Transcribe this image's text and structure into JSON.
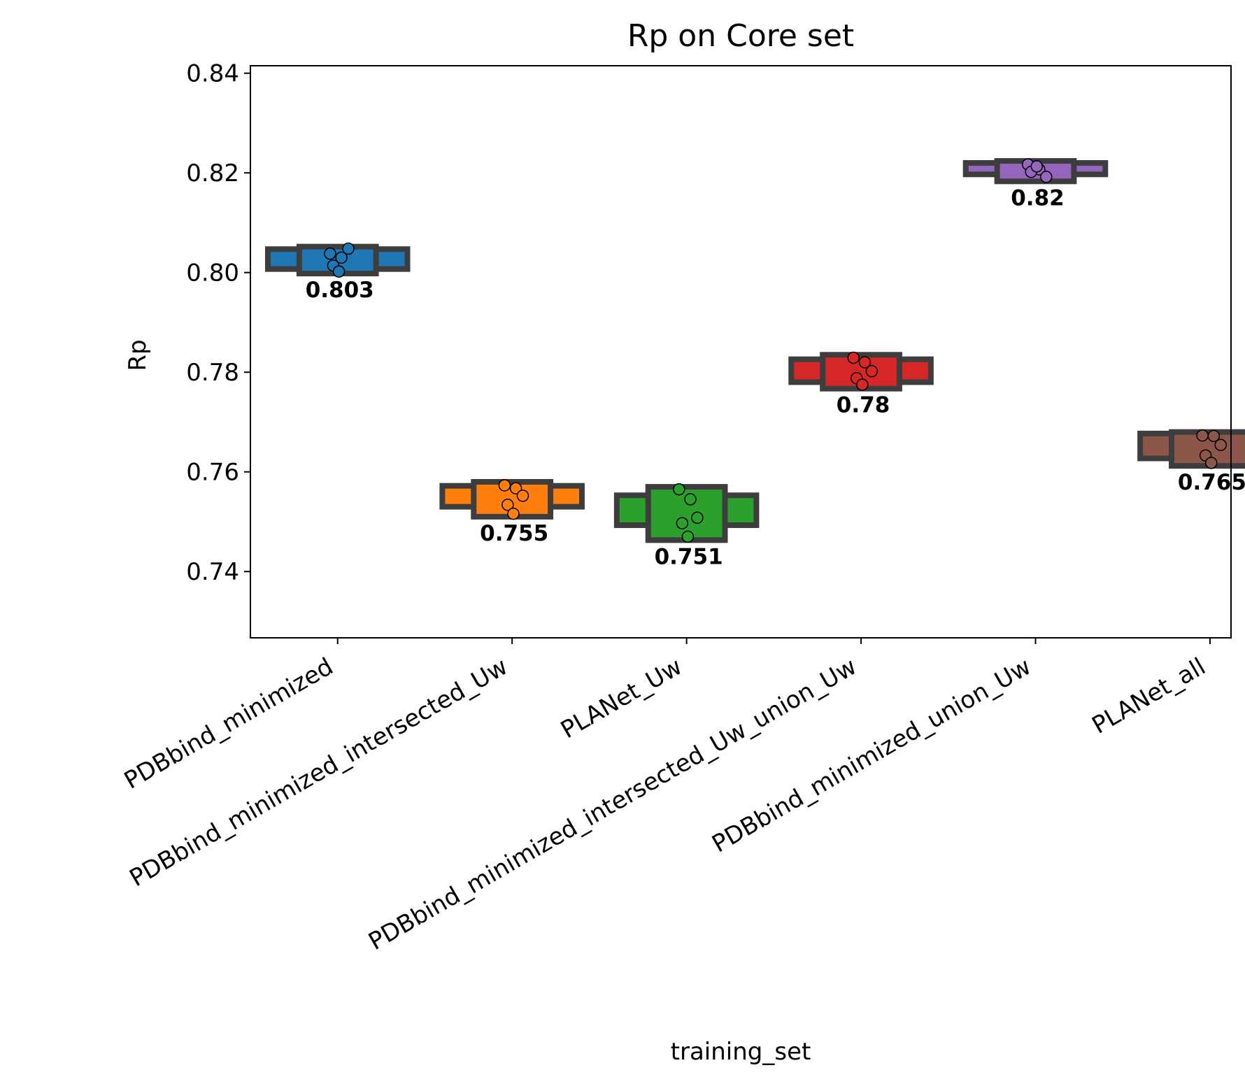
{
  "chart_data": {
    "type": "box",
    "title": "Rp on Core set",
    "xlabel": "training_set",
    "ylabel": "Rp",
    "ylim": [
      0.7267,
      0.8415
    ],
    "yticks": [
      0.74,
      0.76,
      0.78,
      0.8,
      0.82,
      0.84
    ],
    "ytick_labels": [
      "0.74",
      "0.76",
      "0.78",
      "0.80",
      "0.82",
      "0.84"
    ],
    "grid": false,
    "categories": [
      "PDBbind_minimized",
      "PDBbind_minimized_intersected_Uw",
      "PLANet_Uw",
      "PDBbind_minimized_intersected_Uw_union_Uw",
      "PDBbind_minimized_union_Uw",
      "PLANet_all"
    ],
    "series": [
      {
        "category": "PDBbind_minimized",
        "color": "#1f77b4",
        "boxes": [
          {
            "lo": 0.8007,
            "hi": 0.8047,
            "median": 0.8021,
            "w": 1.0
          },
          {
            "lo": 0.7998,
            "hi": 0.8052,
            "w": 0.55
          }
        ],
        "points": [
          0.8038,
          0.803,
          0.8048,
          0.8014,
          0.8002
        ],
        "median_label": "0.803"
      },
      {
        "category": "PDBbind_minimized_intersected_Uw",
        "color": "#ff7f0e",
        "boxes": [
          {
            "lo": 0.753,
            "hi": 0.7572,
            "median": 0.7546,
            "w": 1.0
          },
          {
            "lo": 0.751,
            "hi": 0.758,
            "w": 0.55
          }
        ],
        "points": [
          0.7573,
          0.7567,
          0.7552,
          0.7534,
          0.7516
        ],
        "median_label": "0.755"
      },
      {
        "category": "PLANet_Uw",
        "color": "#2ca02c",
        "boxes": [
          {
            "lo": 0.7493,
            "hi": 0.7553,
            "median": 0.7515,
            "w": 1.0
          },
          {
            "lo": 0.7463,
            "hi": 0.757,
            "w": 0.55
          }
        ],
        "points": [
          0.7565,
          0.7545,
          0.7508,
          0.7497,
          0.747
        ],
        "median_label": "0.751"
      },
      {
        "category": "PDBbind_minimized_intersected_Uw_union_Uw",
        "color": "#d62728",
        "boxes": [
          {
            "lo": 0.778,
            "hi": 0.7826,
            "median": 0.7811,
            "w": 1.0
          },
          {
            "lo": 0.7767,
            "hi": 0.7835,
            "w": 0.55
          }
        ],
        "points": [
          0.7829,
          0.782,
          0.7802,
          0.7788,
          0.7775
        ],
        "median_label": "0.78"
      },
      {
        "category": "PDBbind_minimized_union_Uw",
        "color": "#9467bd",
        "boxes": [
          {
            "lo": 0.8197,
            "hi": 0.822,
            "median": 0.8208,
            "w": 1.0
          },
          {
            "lo": 0.8183,
            "hi": 0.8224,
            "w": 0.55
          }
        ],
        "points": [
          0.8217,
          0.8207,
          0.8192,
          0.8202,
          0.8213
        ],
        "median_label": "0.82"
      },
      {
        "category": "PLANet_all",
        "color": "#8c564b",
        "boxes": [
          {
            "lo": 0.7627,
            "hi": 0.7677,
            "median": 0.7661,
            "w": 1.0
          },
          {
            "lo": 0.7612,
            "hi": 0.768,
            "median": 0.7643,
            "w": 0.55
          }
        ],
        "points": [
          0.7673,
          0.7672,
          0.7654,
          0.7633,
          0.7618
        ],
        "median_label": "0.765"
      }
    ]
  }
}
